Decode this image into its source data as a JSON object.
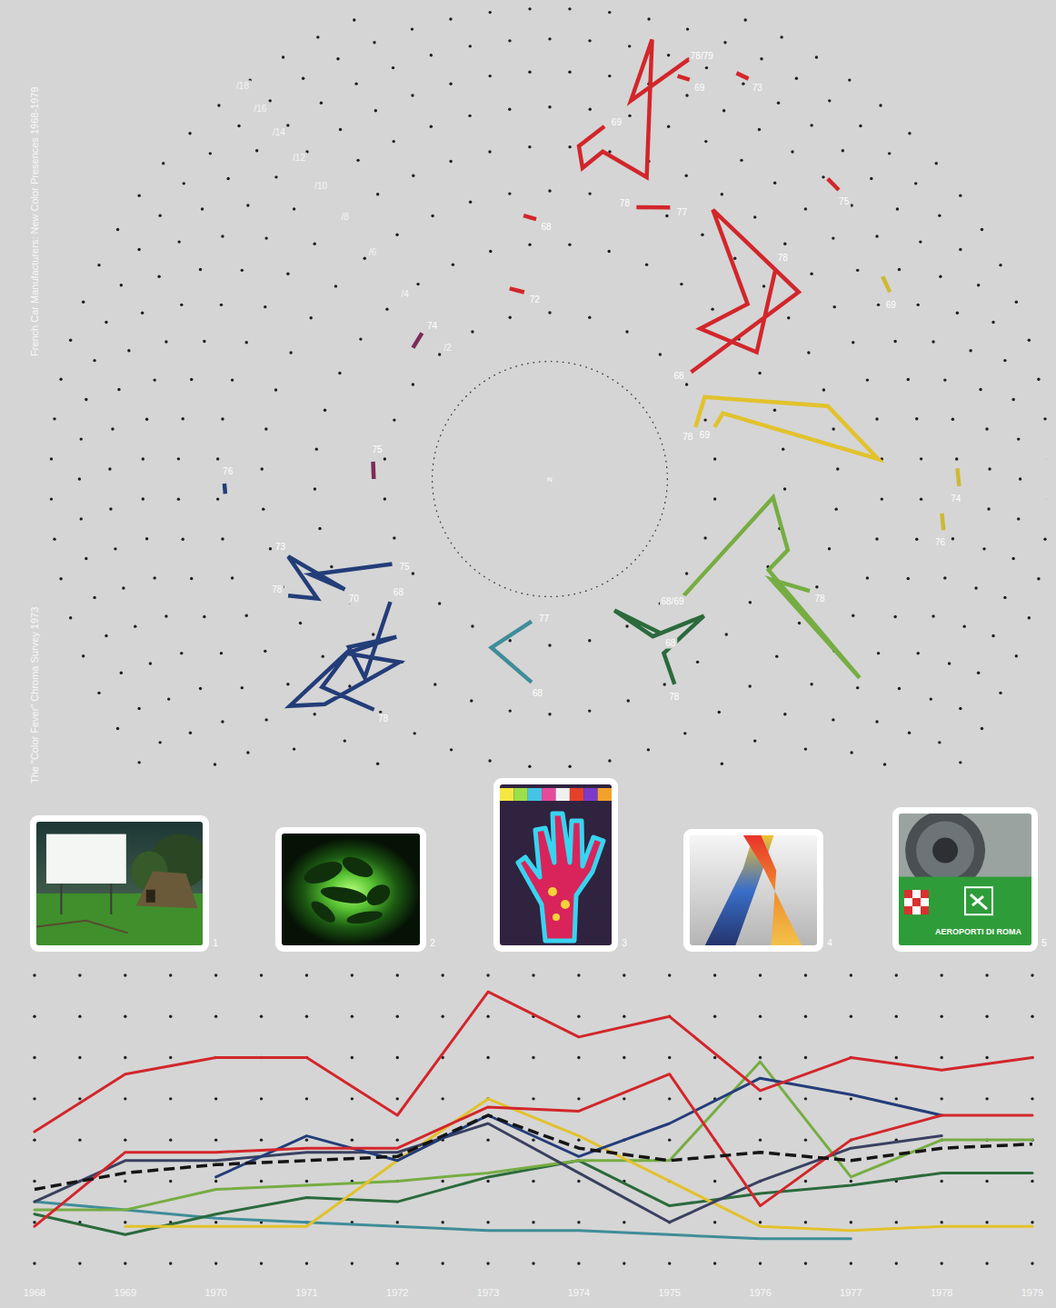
{
  "chart_data": [
    {
      "type": "polar_line",
      "title": "French Car Manufacturers: New Color Presences 1968-1979",
      "center_label": "N",
      "xlim": [
        0,
        360
      ],
      "ylim": [
        1,
        18
      ],
      "yticks": [
        {
          "value": 2,
          "label": "/2"
        },
        {
          "value": 4,
          "label": "/4"
        },
        {
          "value": 6,
          "label": "/6"
        },
        {
          "value": 8,
          "label": "/8"
        },
        {
          "value": 10,
          "label": "/10"
        },
        {
          "value": 12,
          "label": "/12"
        },
        {
          "value": 14,
          "label": "/14"
        },
        {
          "value": 16,
          "label": "/16"
        },
        {
          "value": 18,
          "label": "/18"
        }
      ],
      "grid": true,
      "series": [
        {
          "color": "#d2262b",
          "angle": [
            8.8,
            5.0,
            6.0,
            9.2,
            17.8,
            13.1,
            12.1,
            18.4
          ],
          "values": [
            9.21,
            8.07,
            7.07,
            7.95,
            7.26,
            14.71,
            10.82,
            14.18
          ],
          "labels": [
            "69",
            null,
            null,
            null,
            null,
            null,
            null,
            "78/79"
          ]
        },
        {
          "color": "#d2262b",
          "angle": [
            17.6,
            19.3
          ],
          "values": [
            12.92,
            12.94
          ],
          "labels": [
            null,
            "69"
          ]
        },
        {
          "color": "#d2262b",
          "angle": [
            24.7,
            26.4
          ],
          "values": [
            14.43,
            14.44
          ],
          "labels": [
            null,
            "73"
          ]
        },
        {
          "color": "#d2262b",
          "angle": [
            42.8,
            45.0
          ],
          "values": [
            12.1,
            12.08
          ],
          "labels": [
            null,
            "75"
          ]
        },
        {
          "color": "#d2262b",
          "angle": [
            17.7,
            23.9
          ],
          "values": [
            5.88,
            6.38
          ],
          "labels": [
            "78",
            "77"
          ]
        },
        {
          "color": "#d2262b",
          "angle": [
            354.3,
            357.0
          ],
          "values": [
            5.07,
            4.89
          ],
          "labels": [
            null,
            "68"
          ]
        },
        {
          "color": "#d2262b",
          "angle": [
            348.1,
            352.2
          ],
          "values": [
            2.74,
            2.57
          ],
          "labels": [
            null,
            "72"
          ]
        },
        {
          "color": "#d2262b",
          "angle": [
            52.9,
            53.1,
            31.2,
            48.5,
            45.0,
            58.5,
            47.0
          ],
          "values": [
            2.27,
            7.0,
            7.16,
            5.04,
            3.27,
            4.26,
            6.9
          ],
          "labels": [
            "68",
            null,
            null,
            null,
            null,
            null,
            "78"
          ]
        },
        {
          "color": "#e2c22c",
          "angle": [
            70.4,
            62.1,
            75.3,
            86.5,
            69.2,
            72.5
          ],
          "values": [
            1.73,
            2.22,
            5.97,
            7.82,
            2.48,
            2.16
          ],
          "labels": [
            "78",
            null,
            null,
            null,
            null,
            "69"
          ]
        },
        {
          "color": "#cdb935",
          "angle": [
            58.7,
            61.2
          ],
          "values": [
            10.97,
            10.89
          ],
          "labels": [
            null,
            "69"
          ]
        },
        {
          "color": "#cdb935",
          "angle": [
            88.5,
            91.0
          ],
          "values": [
            12.02,
            12.12
          ],
          "labels": [
            null,
            "74"
          ]
        },
        {
          "color": "#cdb935",
          "angle": [
            95.0,
            97.4
          ],
          "values": [
            11.2,
            11.4
          ],
          "labels": [
            null,
            "76"
          ]
        },
        {
          "color": "#76ad42",
          "angle": [
            131.0,
            94.7,
            106.6,
            112.6,
            122.7,
            114.4,
            113.3
          ],
          "values": [
            2.28,
            3.63,
            4.46,
            4.06,
            9.8,
            4.27,
            5.79
          ],
          "labels": [
            "68/69",
            null,
            null,
            null,
            null,
            null,
            "78"
          ]
        },
        {
          "color": "#2b6a3c",
          "angle": [
            144.1,
            153.8,
            146.8,
            131.6,
            146.8,
            148.7
          ],
          "values": [
            2.64,
            1.55,
            2.56,
            3.07,
            3.13,
            4.17
          ],
          "labels": [
            "68",
            null,
            null,
            null,
            null,
            "78"
          ]
        },
        {
          "color": "#3f8d99",
          "angle": [
            187.3,
            199.1,
            185.1
          ],
          "values": [
            1.49,
            2.3,
            3.01
          ],
          "labels": [
            "77",
            null,
            "68"
          ]
        },
        {
          "color": "#233d79",
          "angle": [
            241.7,
            248.2,
            241.7,
            253.5,
            242.8,
            246.0
          ],
          "values": [
            2.32,
            4.79,
            3.92,
            5.38,
            4.94,
            5.93
          ],
          "labels": [
            "75",
            null,
            "70",
            "73",
            null,
            "78"
          ]
        },
        {
          "color": "#233d79",
          "angle": [
            232.4,
            223.0,
            230.1,
            224.2,
            229.4,
            219.4,
            225.0,
            228.9,
            229.5,
            227.6,
            217.3
          ],
          "values": [
            2.93,
            5.33,
            4.96,
            3.5,
            5.18,
            4.06,
            7.33,
            8.61,
            4.98,
            6.88,
            6.08
          ],
          "labels": [
            "68",
            null,
            null,
            null,
            null,
            null,
            null,
            null,
            null,
            null,
            "78"
          ]
        },
        {
          "color": "#233d79",
          "angle": [
            269.2,
            267.4
          ],
          "values": [
            7.66,
            7.63
          ],
          "labels": [
            "76",
            null
          ]
        },
        {
          "color": "#7b2b57",
          "angle": [
            313.8,
            318.8
          ],
          "values": [
            2.6,
            2.72
          ],
          "labels": [
            null,
            "74"
          ]
        },
        {
          "color": "#7b2b57",
          "angle": [
            275.6,
            270.0
          ],
          "values": [
            2.28,
            2.24
          ],
          "labels": [
            "75",
            null
          ]
        }
      ]
    },
    {
      "type": "line",
      "title": "The \"Color Fever\" Chroma Survey 1973",
      "x": [
        1968,
        1969,
        1970,
        1971,
        1972,
        1973,
        1974,
        1975,
        1976,
        1977,
        1978,
        1979
      ],
      "xlim": [
        1968,
        1979
      ],
      "xticks": [
        1968,
        1969,
        1970,
        1971,
        1972,
        1973,
        1974,
        1975,
        1976,
        1977,
        1978,
        1979
      ],
      "ylim": [
        0,
        7
      ],
      "yticks": [
        0,
        1,
        2,
        3,
        4,
        5,
        6,
        7
      ],
      "tick_labels": "x",
      "grid": true,
      "series": [
        {
          "color": "#3f8d99",
          "values": [
            1.5,
            1.3,
            1.1,
            1.0,
            0.9,
            0.8,
            0.8,
            0.7,
            0.6,
            0.6,
            null,
            null
          ]
        },
        {
          "color": "#2b6a3c",
          "values": [
            1.2,
            0.7,
            1.2,
            1.6,
            1.5,
            2.1,
            2.5,
            1.4,
            1.7,
            1.9,
            2.2,
            2.2
          ]
        },
        {
          "color": "#76ad42",
          "values": [
            1.3,
            1.3,
            1.8,
            1.9,
            2.0,
            2.2,
            2.5,
            2.5,
            4.9,
            2.1,
            3.0,
            3.0
          ]
        },
        {
          "color": "#e2c22c",
          "values": [
            null,
            0.9,
            0.9,
            0.9,
            2.5,
            4.0,
            3.1,
            2.0,
            0.9,
            0.8,
            0.9,
            0.9
          ]
        },
        {
          "color": "#3a4060",
          "values": [
            1.5,
            2.5,
            2.5,
            2.7,
            2.7,
            3.4,
            2.2,
            1.0,
            2.0,
            2.8,
            3.1,
            null
          ]
        },
        {
          "color": "#233d79",
          "values": [
            null,
            null,
            2.1,
            3.1,
            2.5,
            3.6,
            2.6,
            3.4,
            4.5,
            4.1,
            3.6,
            null
          ]
        },
        {
          "color": "#d2262b",
          "values": [
            0.9,
            2.7,
            2.7,
            2.8,
            2.8,
            3.8,
            3.7,
            4.6,
            1.4,
            3.0,
            3.6,
            3.6
          ]
        },
        {
          "color": "#d2262b",
          "values": [
            3.2,
            4.6,
            5.0,
            5.0,
            3.6,
            6.6,
            5.5,
            6.0,
            4.2,
            5.0,
            4.7,
            5.0
          ]
        },
        {
          "color": "#151515",
          "line_style": "dashed",
          "values": [
            1.8,
            2.2,
            2.4,
            2.5,
            2.6,
            3.6,
            2.8,
            2.5,
            2.7,
            2.5,
            2.8,
            2.9
          ]
        }
      ]
    }
  ],
  "images": [
    {
      "number": 1
    },
    {
      "number": 2
    },
    {
      "number": 3
    },
    {
      "number": 4
    },
    {
      "number": 5,
      "text": "AEROPORTI DI ROMA"
    }
  ]
}
